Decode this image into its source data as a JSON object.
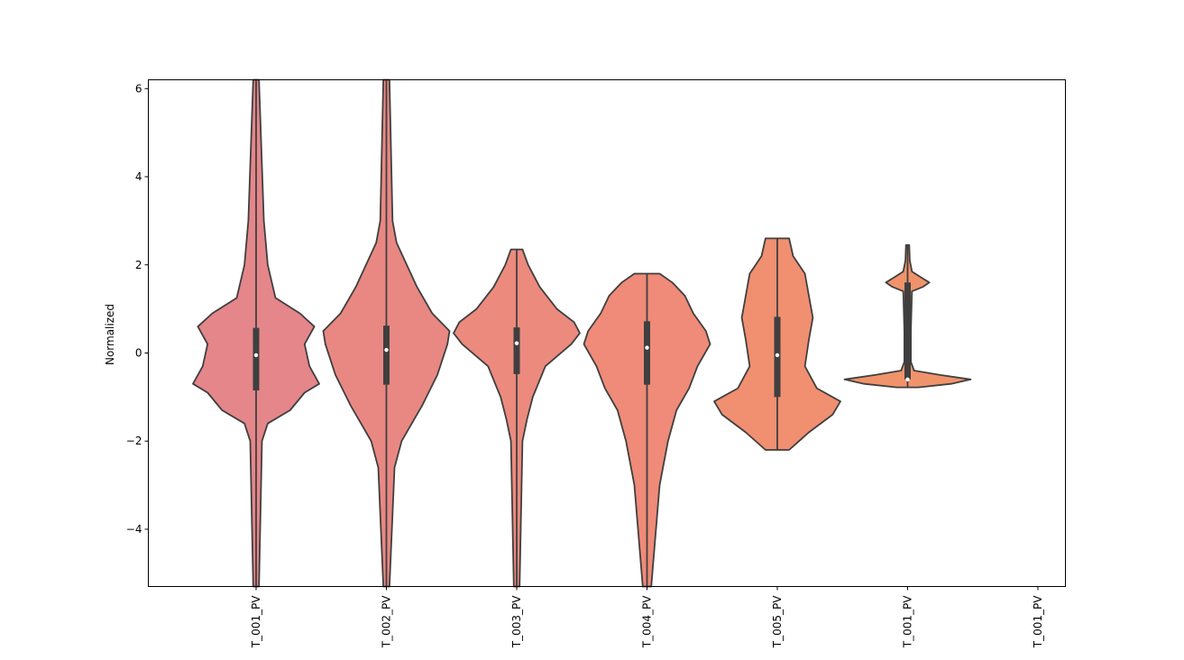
{
  "chart_data": {
    "type": "violin",
    "title": "",
    "xlabel": "",
    "ylabel": "Normalized",
    "ylim": [
      -5.3,
      6.2
    ],
    "yticks": [
      -4,
      -2,
      0,
      2,
      4,
      6
    ],
    "grid": false,
    "categories": [
      "T_001_PV",
      "T_002_PV",
      "T_003_PV",
      "T_004_PV",
      "T_005_PV",
      "T_001_PV",
      "T_001_PV"
    ],
    "series": [
      {
        "category": "T_001_PV",
        "color": "#e5868a",
        "range": [
          -5.3,
          6.2
        ],
        "quartiles": [
          -0.85,
          0.57
        ],
        "median": -0.05,
        "whiskers": [
          -5.3,
          6.2
        ],
        "density": [
          [
            -5.3,
            0.3
          ],
          [
            -2.0,
            0.6
          ],
          [
            -1.6,
            1.2
          ],
          [
            -1.3,
            3.5
          ],
          [
            -0.9,
            5.0
          ],
          [
            -0.7,
            6.5
          ],
          [
            -0.3,
            5.5
          ],
          [
            0.2,
            5.0
          ],
          [
            0.6,
            6.0
          ],
          [
            0.9,
            4.5
          ],
          [
            1.25,
            2.0
          ],
          [
            2.0,
            1.2
          ],
          [
            3.0,
            0.8
          ],
          [
            6.2,
            0.3
          ]
        ]
      },
      {
        "category": "T_002_PV",
        "color": "#e98883",
        "range": [
          -5.3,
          6.2
        ],
        "quartiles": [
          -0.72,
          0.62
        ],
        "median": 0.07,
        "whiskers": [
          -5.3,
          6.2
        ],
        "density": [
          [
            -5.3,
            0.3
          ],
          [
            -2.6,
            0.8
          ],
          [
            -2.0,
            1.5
          ],
          [
            -1.2,
            3.5
          ],
          [
            -0.5,
            5.0
          ],
          [
            0.2,
            6.0
          ],
          [
            0.5,
            6.2
          ],
          [
            0.9,
            4.5
          ],
          [
            1.5,
            3.0
          ],
          [
            2.0,
            2.0
          ],
          [
            2.5,
            1.0
          ],
          [
            3.0,
            0.6
          ],
          [
            6.2,
            0.3
          ]
        ]
      },
      {
        "category": "T_003_PV",
        "color": "#ec8a7e",
        "range": [
          -5.3,
          2.35
        ],
        "quartiles": [
          -0.48,
          0.58
        ],
        "median": 0.22,
        "whiskers": [
          -5.3,
          2.35
        ],
        "density": [
          [
            -5.3,
            0.5
          ],
          [
            -2.0,
            1.0
          ],
          [
            -1.5,
            1.8
          ],
          [
            -1.0,
            2.8
          ],
          [
            -0.3,
            5.0
          ],
          [
            0.2,
            9.5
          ],
          [
            0.45,
            11.0
          ],
          [
            0.7,
            10.0
          ],
          [
            1.0,
            7.0
          ],
          [
            1.5,
            4.0
          ],
          [
            2.0,
            2.0
          ],
          [
            2.35,
            1.0
          ]
        ]
      },
      {
        "category": "T_004_PV",
        "color": "#ef8b78",
        "range": [
          -5.3,
          1.8
        ],
        "quartiles": [
          -0.72,
          0.72
        ],
        "median": 0.12,
        "whiskers": [
          -5.3,
          1.8
        ],
        "density": [
          [
            -5.3,
            0.5
          ],
          [
            -3.0,
            1.5
          ],
          [
            -2.0,
            2.5
          ],
          [
            -1.3,
            3.5
          ],
          [
            -0.8,
            5.0
          ],
          [
            -0.3,
            6.0
          ],
          [
            0.2,
            7.5
          ],
          [
            0.5,
            7.0
          ],
          [
            0.9,
            5.5
          ],
          [
            1.3,
            4.5
          ],
          [
            1.6,
            3.0
          ],
          [
            1.8,
            1.5
          ]
        ]
      },
      {
        "category": "T_005_PV",
        "color": "#f18f71",
        "range": [
          -2.2,
          2.6
        ],
        "quartiles": [
          -1.0,
          0.82
        ],
        "median": -0.05,
        "whiskers": [
          -2.2,
          2.6
        ],
        "density": [
          [
            -2.2,
            1.5
          ],
          [
            -1.8,
            4.0
          ],
          [
            -1.4,
            7.0
          ],
          [
            -1.1,
            8.0
          ],
          [
            -0.8,
            5.0
          ],
          [
            -0.3,
            3.5
          ],
          [
            0.3,
            4.0
          ],
          [
            0.8,
            4.5
          ],
          [
            1.3,
            4.0
          ],
          [
            1.8,
            3.5
          ],
          [
            2.2,
            2.0
          ],
          [
            2.6,
            1.5
          ]
        ]
      },
      {
        "category": "T_001_PV",
        "color": "#f0936b",
        "range": [
          -0.78,
          2.45
        ],
        "quartiles": [
          -0.6,
          1.6
        ],
        "median": -0.6,
        "whiskers": [
          -0.78,
          2.45
        ],
        "density": [
          [
            -0.78,
            10.0
          ],
          [
            -0.7,
            40.0
          ],
          [
            -0.6,
            58.0
          ],
          [
            -0.5,
            30.0
          ],
          [
            -0.4,
            6.0
          ],
          [
            -0.2,
            3.0
          ],
          [
            0.5,
            3.0
          ],
          [
            1.4,
            4.0
          ],
          [
            1.5,
            14.0
          ],
          [
            1.6,
            20.0
          ],
          [
            1.72,
            12.0
          ],
          [
            1.85,
            4.0
          ],
          [
            2.1,
            2.0
          ],
          [
            2.45,
            1.5
          ]
        ]
      },
      {
        "category": "T_001_PV",
        "color": "#f0936b",
        "range": null,
        "quartiles": null,
        "median": null,
        "whiskers": null,
        "density": []
      }
    ]
  }
}
